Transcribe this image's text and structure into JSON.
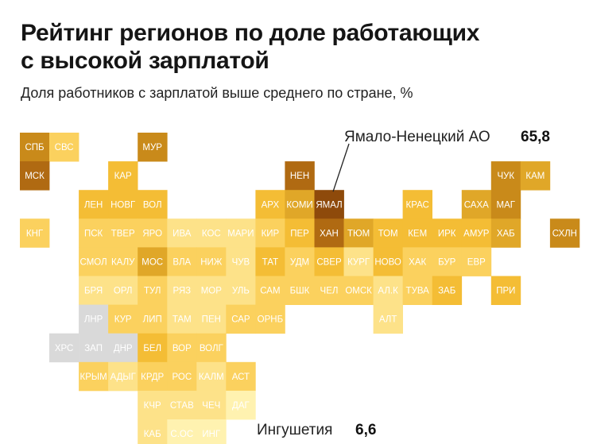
{
  "header": {
    "title_line1": "Рейтинг регионов по доле работающих",
    "title_line2": "с высокой зарплатой",
    "subtitle": "Доля работников с зарплатой выше среднего по стране, %"
  },
  "colors": {
    "scale": [
      "#fff2b0",
      "#fde289",
      "#fbd15e",
      "#f4bd35",
      "#e0a728",
      "#c98a1a",
      "#b06a12",
      "#8e4a0b"
    ],
    "no_data": "#d9d9d9",
    "tile_text": "#ffffff"
  },
  "chart_data": {
    "type": "heatmap",
    "title": "Рейтинг регионов по доле работающих с высокой зарплатой",
    "subtitle": "Доля работников с зарплатой выше среднего по стране, %",
    "grid_columns": 20,
    "grid_rows": 11,
    "tiles": [
      {
        "code": "СПБ",
        "col": 0,
        "row": 0,
        "level": 5
      },
      {
        "code": "СВС",
        "col": 1,
        "row": 0,
        "level": 2
      },
      {
        "code": "МУР",
        "col": 4,
        "row": 0,
        "level": 5
      },
      {
        "code": "МСК",
        "col": 0,
        "row": 1,
        "level": 6
      },
      {
        "code": "КАР",
        "col": 3,
        "row": 1,
        "level": 3
      },
      {
        "code": "НЕН",
        "col": 9,
        "row": 1,
        "level": 6
      },
      {
        "code": "ЧУК",
        "col": 16,
        "row": 1,
        "level": 5
      },
      {
        "code": "КАМ",
        "col": 17,
        "row": 1,
        "level": 4
      },
      {
        "code": "ЛЕН",
        "col": 2,
        "row": 2,
        "level": 3
      },
      {
        "code": "НОВГ",
        "col": 3,
        "row": 2,
        "level": 3
      },
      {
        "code": "ВОЛ",
        "col": 4,
        "row": 2,
        "level": 3
      },
      {
        "code": "АРХ",
        "col": 8,
        "row": 2,
        "level": 3
      },
      {
        "code": "КОМИ",
        "col": 9,
        "row": 2,
        "level": 4
      },
      {
        "code": "ЯМАЛ",
        "col": 10,
        "row": 2,
        "level": 7
      },
      {
        "code": "КРАС",
        "col": 13,
        "row": 2,
        "level": 3
      },
      {
        "code": "САХА",
        "col": 15,
        "row": 2,
        "level": 4
      },
      {
        "code": "МАГ",
        "col": 16,
        "row": 2,
        "level": 5
      },
      {
        "code": "КНГ",
        "col": 0,
        "row": 3,
        "level": 2
      },
      {
        "code": "ПСК",
        "col": 2,
        "row": 3,
        "level": 2
      },
      {
        "code": "ТВЕР",
        "col": 3,
        "row": 3,
        "level": 2
      },
      {
        "code": "ЯРО",
        "col": 4,
        "row": 3,
        "level": 2
      },
      {
        "code": "ИВА",
        "col": 5,
        "row": 3,
        "level": 1
      },
      {
        "code": "КОС",
        "col": 6,
        "row": 3,
        "level": 1
      },
      {
        "code": "МАРИ",
        "col": 7,
        "row": 3,
        "level": 1
      },
      {
        "code": "КИР",
        "col": 8,
        "row": 3,
        "level": 2
      },
      {
        "code": "ПЕР",
        "col": 9,
        "row": 3,
        "level": 3
      },
      {
        "code": "ХАН",
        "col": 10,
        "row": 3,
        "level": 6
      },
      {
        "code": "ТЮМ",
        "col": 11,
        "row": 3,
        "level": 4
      },
      {
        "code": "ТОМ",
        "col": 12,
        "row": 3,
        "level": 3
      },
      {
        "code": "КЕМ",
        "col": 13,
        "row": 3,
        "level": 3
      },
      {
        "code": "ИРК",
        "col": 14,
        "row": 3,
        "level": 3
      },
      {
        "code": "АМУР",
        "col": 15,
        "row": 3,
        "level": 3
      },
      {
        "code": "ХАБ",
        "col": 16,
        "row": 3,
        "level": 4
      },
      {
        "code": "СХЛН",
        "col": 18,
        "row": 3,
        "level": 5
      },
      {
        "code": "СМОЛ",
        "col": 2,
        "row": 4,
        "level": 2
      },
      {
        "code": "КАЛУ",
        "col": 3,
        "row": 4,
        "level": 2
      },
      {
        "code": "МОС",
        "col": 4,
        "row": 4,
        "level": 4
      },
      {
        "code": "ВЛА",
        "col": 5,
        "row": 4,
        "level": 2
      },
      {
        "code": "НИЖ",
        "col": 6,
        "row": 4,
        "level": 2
      },
      {
        "code": "ЧУВ",
        "col": 7,
        "row": 4,
        "level": 1
      },
      {
        "code": "ТАТ",
        "col": 8,
        "row": 4,
        "level": 3
      },
      {
        "code": "УДМ",
        "col": 9,
        "row": 4,
        "level": 2
      },
      {
        "code": "СВЕР",
        "col": 10,
        "row": 4,
        "level": 3
      },
      {
        "code": "КУРГ",
        "col": 11,
        "row": 4,
        "level": 1
      },
      {
        "code": "НОВО",
        "col": 12,
        "row": 4,
        "level": 3
      },
      {
        "code": "ХАК",
        "col": 13,
        "row": 4,
        "level": 2
      },
      {
        "code": "БУР",
        "col": 14,
        "row": 4,
        "level": 2
      },
      {
        "code": "ЕВР",
        "col": 15,
        "row": 4,
        "level": 2
      },
      {
        "code": "БРЯ",
        "col": 2,
        "row": 5,
        "level": 1
      },
      {
        "code": "ОРЛ",
        "col": 3,
        "row": 5,
        "level": 1
      },
      {
        "code": "ТУЛ",
        "col": 4,
        "row": 5,
        "level": 2
      },
      {
        "code": "РЯЗ",
        "col": 5,
        "row": 5,
        "level": 1
      },
      {
        "code": "МОР",
        "col": 6,
        "row": 5,
        "level": 1
      },
      {
        "code": "УЛЬ",
        "col": 7,
        "row": 5,
        "level": 1
      },
      {
        "code": "САМ",
        "col": 8,
        "row": 5,
        "level": 2
      },
      {
        "code": "БШК",
        "col": 9,
        "row": 5,
        "level": 2
      },
      {
        "code": "ЧЕЛ",
        "col": 10,
        "row": 5,
        "level": 2
      },
      {
        "code": "ОМСК",
        "col": 11,
        "row": 5,
        "level": 2
      },
      {
        "code": "АЛ.К",
        "col": 12,
        "row": 5,
        "level": 1
      },
      {
        "code": "ТУВА",
        "col": 13,
        "row": 5,
        "level": 2
      },
      {
        "code": "ЗАБ",
        "col": 14,
        "row": 5,
        "level": 3
      },
      {
        "code": "ПРИ",
        "col": 16,
        "row": 5,
        "level": 3
      },
      {
        "code": "ЛНР",
        "col": 2,
        "row": 6,
        "level": -1
      },
      {
        "code": "КУР",
        "col": 3,
        "row": 6,
        "level": 2
      },
      {
        "code": "ЛИП",
        "col": 4,
        "row": 6,
        "level": 2
      },
      {
        "code": "ТАМ",
        "col": 5,
        "row": 6,
        "level": 1
      },
      {
        "code": "ПЕН",
        "col": 6,
        "row": 6,
        "level": 1
      },
      {
        "code": "САР",
        "col": 7,
        "row": 6,
        "level": 2
      },
      {
        "code": "ОРНБ",
        "col": 8,
        "row": 6,
        "level": 2
      },
      {
        "code": "АЛТ",
        "col": 12,
        "row": 6,
        "level": 1
      },
      {
        "code": "ХРС",
        "col": 1,
        "row": 7,
        "level": -1
      },
      {
        "code": "ЗАП",
        "col": 2,
        "row": 7,
        "level": -1
      },
      {
        "code": "ДНР",
        "col": 3,
        "row": 7,
        "level": -1
      },
      {
        "code": "БЕЛ",
        "col": 4,
        "row": 7,
        "level": 3
      },
      {
        "code": "ВОР",
        "col": 5,
        "row": 7,
        "level": 2
      },
      {
        "code": "ВОЛГ",
        "col": 6,
        "row": 7,
        "level": 2
      },
      {
        "code": "КРЫМ",
        "col": 2,
        "row": 8,
        "level": 2
      },
      {
        "code": "АДЫГ",
        "col": 3,
        "row": 8,
        "level": 1
      },
      {
        "code": "КРДР",
        "col": 4,
        "row": 8,
        "level": 2
      },
      {
        "code": "РОС",
        "col": 5,
        "row": 8,
        "level": 2
      },
      {
        "code": "КАЛМ",
        "col": 6,
        "row": 8,
        "level": 1
      },
      {
        "code": "АСТ",
        "col": 7,
        "row": 8,
        "level": 2
      },
      {
        "code": "КЧР",
        "col": 4,
        "row": 9,
        "level": 1
      },
      {
        "code": "СТАВ",
        "col": 5,
        "row": 9,
        "level": 1
      },
      {
        "code": "ЧЕЧ",
        "col": 6,
        "row": 9,
        "level": 1
      },
      {
        "code": "ДАГ",
        "col": 7,
        "row": 9,
        "level": 0
      },
      {
        "code": "КАБ",
        "col": 4,
        "row": 10,
        "level": 1
      },
      {
        "code": "С.ОС",
        "col": 5,
        "row": 10,
        "level": 0
      },
      {
        "code": "ИНГ",
        "col": 6,
        "row": 10,
        "level": 0
      }
    ],
    "annotations": [
      {
        "region": "ЯМАЛ",
        "label": "Ямало-Ненецкий АО",
        "value": "65,8",
        "placement": "above-right"
      },
      {
        "region": "ИНГ",
        "label": "Ингушетия",
        "value": "6,6",
        "placement": "right"
      }
    ]
  }
}
